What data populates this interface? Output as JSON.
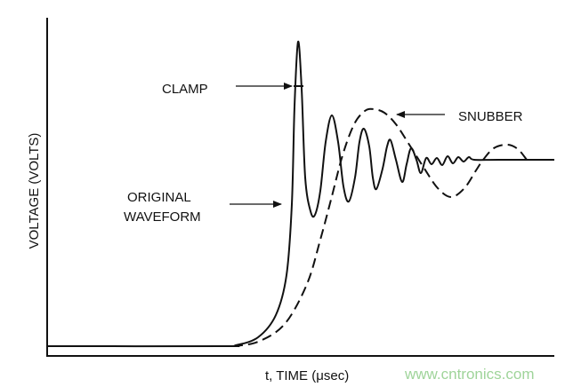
{
  "diagram": {
    "y_axis_label": "VOLTAGE (VOLTS)",
    "x_axis_label": "t, TIME (μsec)",
    "annotations": {
      "clamp": "CLAMP",
      "original_line1": "ORIGINAL",
      "original_line2": "WAVEFORM",
      "snubber": "SNUBBER"
    },
    "curves": [
      {
        "name": "original-waveform",
        "style": "solid"
      },
      {
        "name": "snubber",
        "style": "dashed"
      }
    ]
  },
  "watermark": {
    "text": "www.cntronics.com",
    "color": "#9fd49a"
  }
}
